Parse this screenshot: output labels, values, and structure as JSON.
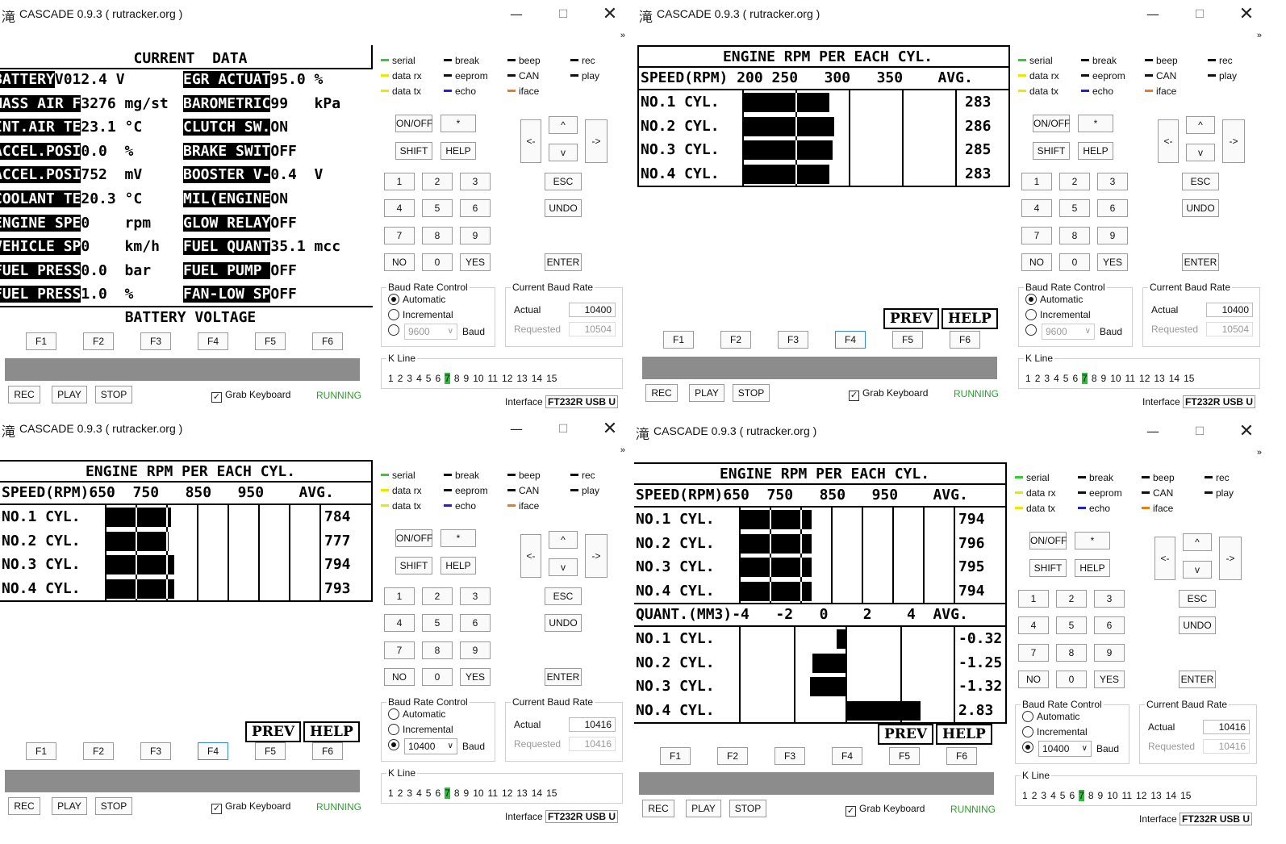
{
  "window": {
    "icon": "滝",
    "title": "CASCADE 0.9.3 ( rutracker.org )",
    "min": "—",
    "max": "☐",
    "close": "✕",
    "expand": "»"
  },
  "colors": {
    "running": "#2ca02c",
    "serial": "#33cc33",
    "data_rx": "#e8e800",
    "data_tx": "#e8e800",
    "echo": "#2020cc",
    "iface": "#e87c1e",
    "kline_active": "#2cc03a"
  },
  "panel": {
    "leds": [
      {
        "label": "serial",
        "color": "#33cc33"
      },
      {
        "label": "data rx",
        "color": "#e8e800"
      },
      {
        "label": "data tx",
        "color": "#e8e800"
      },
      {
        "label": "break",
        "color": "#111111"
      },
      {
        "label": "eeprom",
        "color": "#111111"
      },
      {
        "label": "echo",
        "color": "#2020cc"
      },
      {
        "label": "beep",
        "color": "#111111"
      },
      {
        "label": "CAN",
        "color": "#111111"
      },
      {
        "label": "iface",
        "color": "#e87c1e"
      },
      {
        "label": "rec",
        "color": "#111111"
      },
      {
        "label": "play",
        "color": "#111111"
      }
    ],
    "keys": {
      "onoff": "ON/OFF",
      "star": "*",
      "shift": "SHIFT",
      "help": "HELP",
      "left": "<-",
      "right": "->",
      "up": "^",
      "down": "v",
      "n1": "1",
      "n2": "2",
      "n3": "3",
      "n4": "4",
      "n5": "5",
      "n6": "6",
      "n7": "7",
      "n8": "8",
      "n9": "9",
      "no": "NO",
      "n0": "0",
      "yes": "YES",
      "esc": "ESC",
      "undo": "UNDO",
      "enter": "ENTER"
    },
    "baud_control_caption": "Baud Rate Control",
    "automatic": "Automatic",
    "incremental": "Incremental",
    "baud_label": "Baud",
    "current_baud_caption": "Current Baud Rate",
    "actual_label": "Actual",
    "requested_label": "Requested",
    "kline_caption": "K Line",
    "kline": [
      "1",
      "2",
      "3",
      "4",
      "5",
      "6",
      "7",
      "8",
      "9",
      "10",
      "11",
      "12",
      "13",
      "14",
      "15"
    ],
    "interface_label": "Interface",
    "interface_value": "FT232R USB U"
  },
  "bottom": {
    "fkeys": [
      "F1",
      "F2",
      "F3",
      "F4",
      "F5",
      "F6"
    ],
    "rec": "REC",
    "play": "PLAY",
    "stop": "STOP",
    "grab": "Grab Keyboard",
    "running": "RUNNING",
    "prev": "PREV",
    "help": "HELP"
  },
  "w1": {
    "baud_select": "9600",
    "actual": "10400",
    "requested": "10504",
    "header": "CURRENT  DATA",
    "rows": [
      {
        "l": "BATTERY",
        "lv": "V012.4 V",
        "r": "EGR ACTUAT",
        "rv": "95.0 %"
      },
      {
        "l": "MASS AIR F",
        "lv": "3276 mg/st",
        "r": "BAROMETRIC",
        "rv": "99   kPa"
      },
      {
        "l": "INT.AIR TE",
        "lv": "23.1 °C",
        "r": "CLUTCH SW.",
        "rv": "ON"
      },
      {
        "l": "ACCEL.POSI",
        "lv": "0.0  %",
        "r": "BRAKE SWIT",
        "rv": "OFF"
      },
      {
        "l": "ACCEL.POSI",
        "lv": "752  mV",
        "r": "BOOSTER V-",
        "rv": "0.4  V"
      },
      {
        "l": "COOLANT TE",
        "lv": "20.3 °C",
        "r": "MIL(ENGINE",
        "rv": "ON"
      },
      {
        "l": "ENGINE SPE",
        "lv": "0    rpm",
        "r": "GLOW RELAY",
        "rv": "OFF"
      },
      {
        "l": "VEHICLE SP",
        "lv": "0    km/h",
        "r": "FUEL QUANT",
        "rv": "35.1 mcc"
      },
      {
        "l": "FUEL PRESS",
        "lv": "0.0  bar",
        "r": "FUEL PUMP ",
        "rv": "OFF"
      },
      {
        "l": "FUEL PRESS",
        "lv": "1.0  %",
        "r": "FAN-LOW SP",
        "rv": "OFF"
      }
    ],
    "footer": "BATTERY VOLTAGE"
  },
  "w2": {
    "baud_select": "9600",
    "actual": "10400",
    "requested": "10504",
    "header": "ENGINE RPM PER EACH CYL.",
    "axis": "SPEED(RPM) 200 250   300   350    AVG.",
    "cyl": [
      "NO.1 CYL.",
      "NO.2 CYL.",
      "NO.3 CYL.",
      "NO.4 CYL."
    ],
    "avg": [
      "283",
      "286",
      "285",
      "283"
    ],
    "rpm_values": [
      283,
      286,
      285,
      283
    ]
  },
  "w3": {
    "baud_select": "10400",
    "actual": "10416",
    "requested": "10416",
    "header": "ENGINE RPM PER EACH CYL.",
    "axis": "SPEED(RPM)650  750   850   950    AVG.",
    "cyl": [
      "NO.1 CYL.",
      "NO.2 CYL.",
      "NO.3 CYL.",
      "NO.4 CYL."
    ],
    "avg": [
      "784",
      "777",
      "794",
      "793"
    ],
    "rpm_values": [
      784,
      777,
      794,
      793
    ]
  },
  "w4": {
    "baud_select": "10400",
    "actual": "10416",
    "requested": "10416",
    "header": "ENGINE RPM PER EACH CYL.",
    "axis": "SPEED(RPM)650  750   850   950    AVG.",
    "cyl": [
      "NO.1 CYL.",
      "NO.2 CYL.",
      "NO.3 CYL.",
      "NO.4 CYL."
    ],
    "avg": [
      "794",
      "796",
      "795",
      "794"
    ],
    "rpm_values": [
      794,
      796,
      795,
      794
    ],
    "quant_axis": "QUANT.(MM3)-4   -2   0    2    4  AVG.",
    "qavg": [
      "-0.32",
      "-1.25",
      "-1.32",
      "2.83"
    ],
    "quant_values": [
      -0.32,
      -1.25,
      -1.32,
      2.83
    ]
  }
}
